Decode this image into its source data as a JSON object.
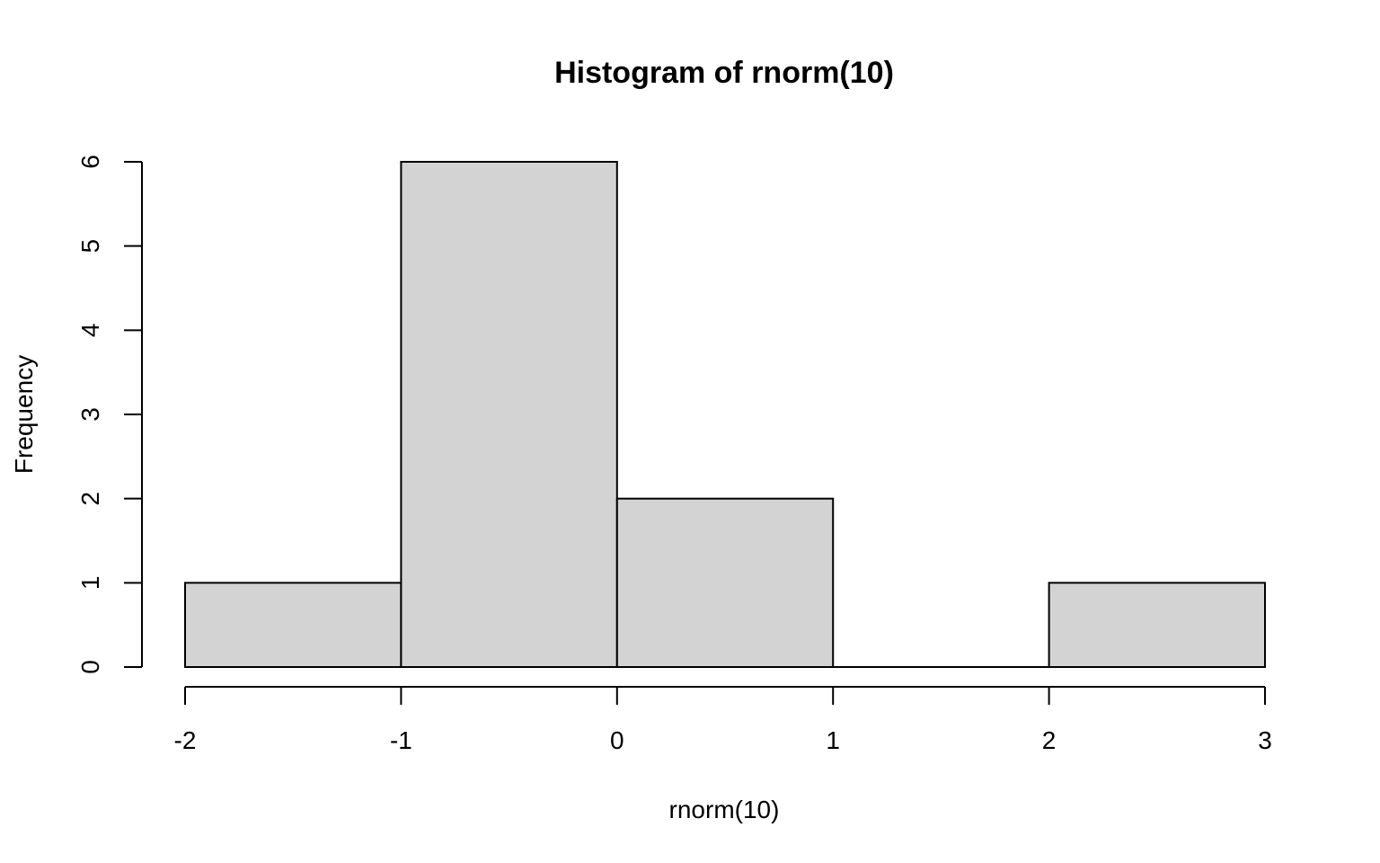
{
  "chart_data": {
    "type": "bar",
    "title": "Histogram of rnorm(10)",
    "xlabel": "rnorm(10)",
    "ylabel": "Frequency",
    "bins": [
      {
        "from": -2,
        "to": -1,
        "count": 1
      },
      {
        "from": -1,
        "to": 0,
        "count": 6
      },
      {
        "from": 0,
        "to": 1,
        "count": 2
      },
      {
        "from": 1,
        "to": 2,
        "count": 0
      },
      {
        "from": 2,
        "to": 3,
        "count": 1
      }
    ],
    "x_ticks": [
      "-2",
      "-1",
      "0",
      "1",
      "2",
      "3"
    ],
    "y_ticks": [
      "0",
      "1",
      "2",
      "3",
      "4",
      "5",
      "6"
    ],
    "xlim": [
      -2,
      3
    ],
    "ylim": [
      0,
      6
    ],
    "grid": false,
    "bar_fill": "#d3d3d3",
    "bar_stroke": "#000000"
  }
}
